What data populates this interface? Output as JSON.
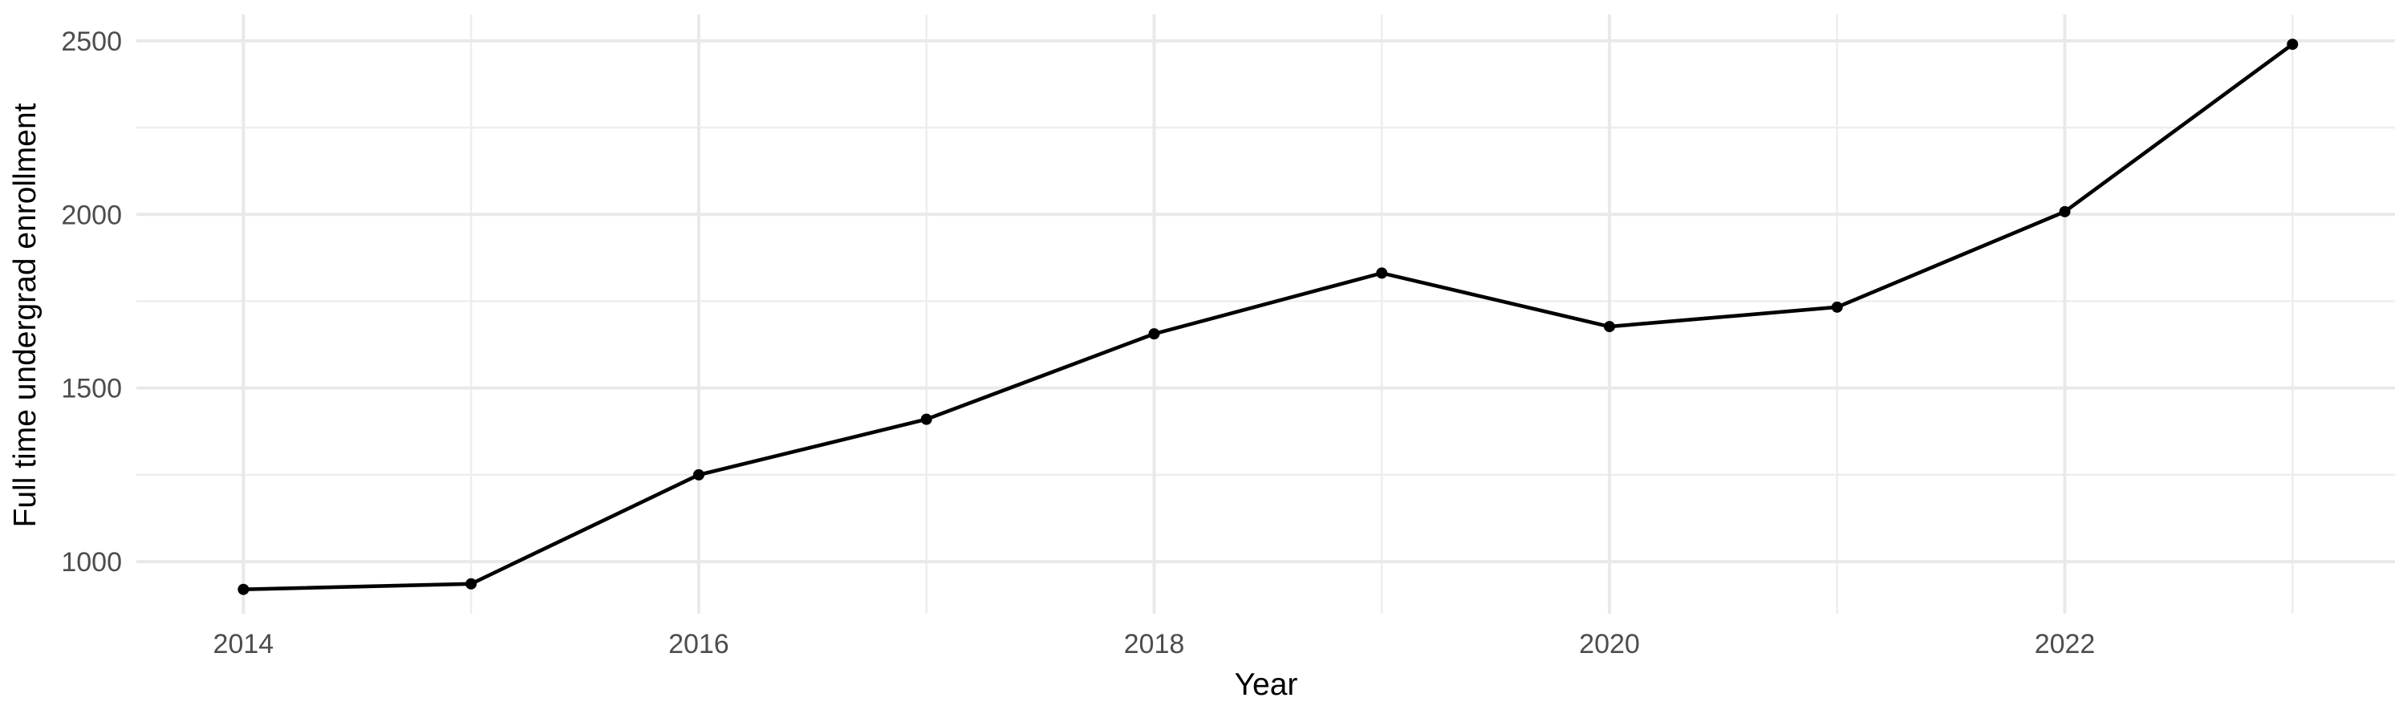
{
  "chart_data": {
    "type": "line",
    "title": "",
    "xlabel": "Year",
    "ylabel": "Full time undergrad enrollment",
    "x": [
      2014,
      2015,
      2016,
      2017,
      2018,
      2019,
      2020,
      2021,
      2022,
      2023
    ],
    "series": [
      {
        "name": "Full time undergrad enrollment",
        "values": [
          920,
          936,
          1250,
          1410,
          1656,
          1831,
          1677,
          1733,
          2008,
          2490
        ]
      }
    ],
    "xlim": [
      2013.53,
      2023.45
    ],
    "ylim": [
      850,
      2576
    ],
    "x_major_ticks": [
      2014,
      2016,
      2018,
      2020,
      2022
    ],
    "x_minor_ticks": [
      2015,
      2017,
      2019,
      2021,
      2023
    ],
    "y_major_ticks": [
      1000,
      1500,
      2000,
      2500
    ],
    "y_minor_ticks": [
      1250,
      1750,
      2250
    ],
    "grid": "on",
    "legend": "none",
    "marker": "filled-circle"
  },
  "colors": {
    "background": "#ffffff",
    "line": "#000000",
    "point": "#000000",
    "grid_major": "#e9e9e9",
    "grid_minor": "#ededed",
    "tick_text": "#4d4d4d",
    "axis_title_text": "#000000"
  }
}
